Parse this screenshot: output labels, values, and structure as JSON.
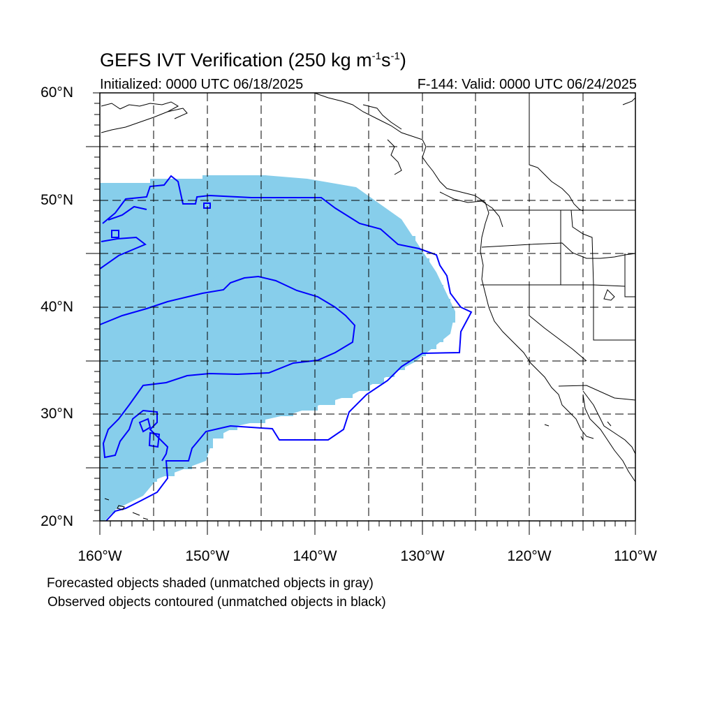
{
  "title": "GEFS IVT Verification (250 kg m",
  "title_sup1": "-1",
  "title_mid": "s",
  "title_sup2": "-1",
  "title_end": ")",
  "initialized": "Initialized: 0000 UTC 06/18/2025",
  "valid": "F-144: Valid: 0000 UTC 06/24/2025",
  "lat_labels": [
    "60°N",
    "50°N",
    "40°N",
    "30°N",
    "20°N"
  ],
  "lon_labels": [
    "160°W",
    "150°W",
    "140°W",
    "130°W",
    "120°W",
    "110°W"
  ],
  "note_forecast": "Forecasted objects shaded (unmatched objects in gray)",
  "note_observed": "Observed objects contoured (unmatched objects in black)",
  "colors": {
    "forecast_fill": "#87ceeb",
    "observed_contour": "#0000ff",
    "coastline": "#000000",
    "grid": "#000000"
  },
  "map": {
    "lat_range": [
      20,
      60
    ],
    "lon_range": [
      -160,
      -110
    ],
    "grid_lat_step": 5,
    "grid_lon_step": 5,
    "grid_style": "dashed"
  }
}
